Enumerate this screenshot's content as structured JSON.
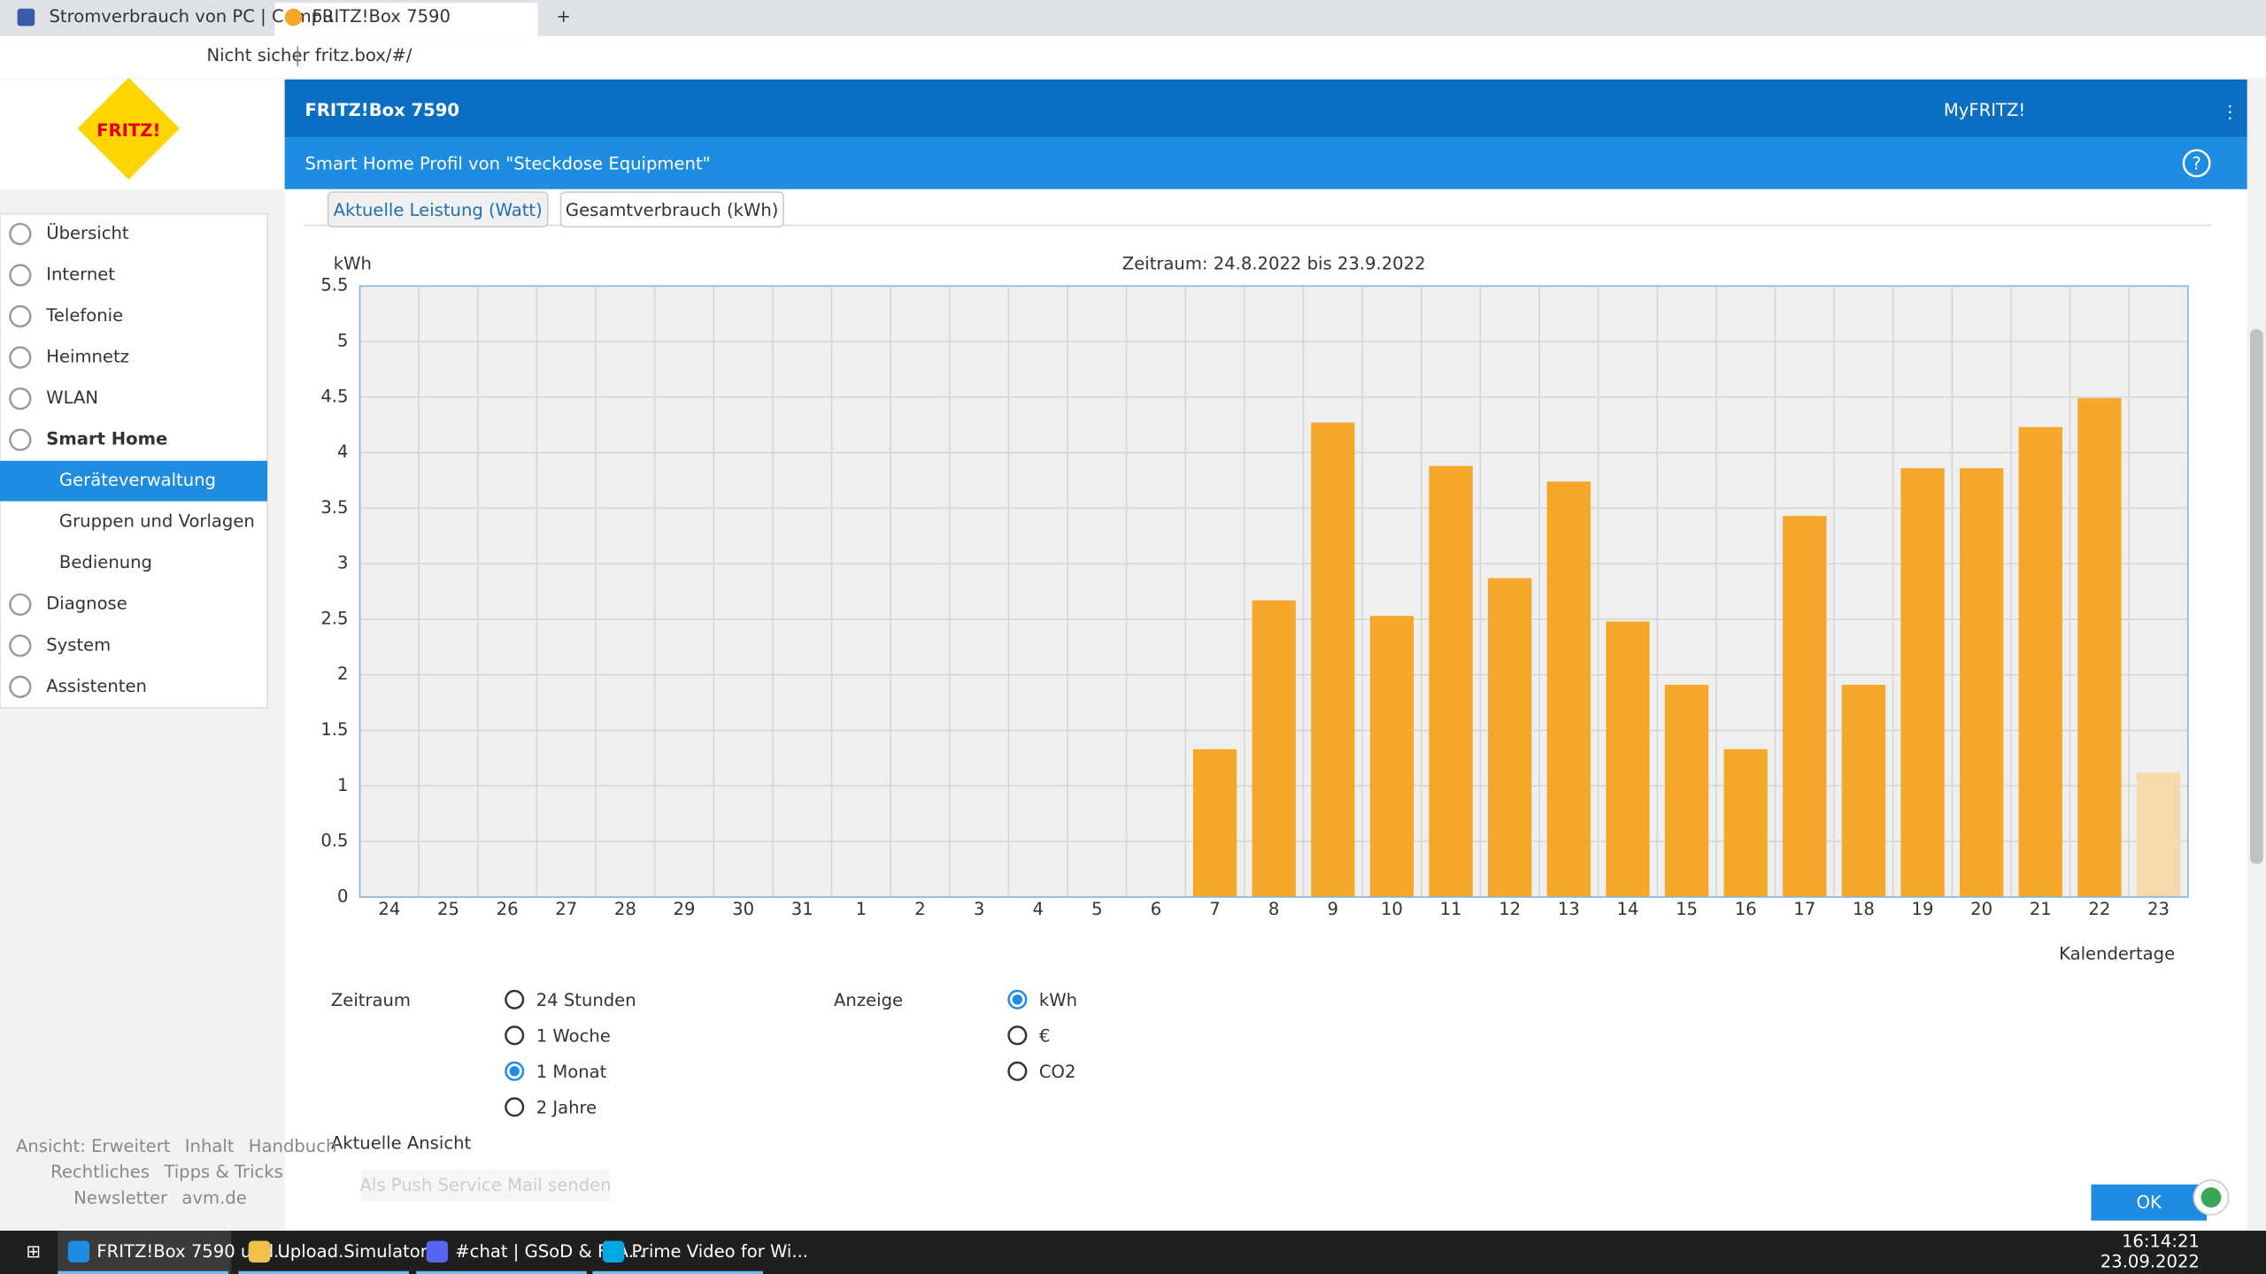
{
  "browser": {
    "tabs": [
      "Stromverbrauch von PC | Compu",
      "FRITZ!Box 7590"
    ],
    "security": "Nicht sicher",
    "url": "fritz.box/#/"
  },
  "header": {
    "logo": "FRITZ!",
    "title": "FRITZ!Box 7590",
    "myfritz": "MyFRITZ!",
    "subtitle": "Smart Home Profil von \"Steckdose Equipment\"",
    "help": "?"
  },
  "menu": [
    {
      "label": "Übersicht"
    },
    {
      "label": "Internet"
    },
    {
      "label": "Telefonie"
    },
    {
      "label": "Heimnetz"
    },
    {
      "label": "WLAN"
    },
    {
      "label": "Smart Home",
      "bold": true
    },
    {
      "label": "Geräteverwaltung",
      "sub": true,
      "active": true
    },
    {
      "label": "Gruppen und Vorlagen",
      "sub": true
    },
    {
      "label": "Bedienung",
      "sub": true
    },
    {
      "label": "Diagnose"
    },
    {
      "label": "System"
    },
    {
      "label": "Assistenten"
    }
  ],
  "footer_links": [
    [
      "Ansicht: Erweitert",
      "Inhalt",
      "Handbuch"
    ],
    [
      "Rechtliches",
      "Tipps & Tricks"
    ],
    [
      "Newsletter",
      "avm.de"
    ]
  ],
  "tabs": [
    {
      "label": "Aktuelle Leistung (Watt)"
    },
    {
      "label": "Gesamtverbrauch (kWh)",
      "active": true
    }
  ],
  "chart_data": {
    "type": "bar",
    "title": "Zeitraum: 24.8.2022 bis 23.9.2022",
    "y_label": "kWh",
    "x_label": "Kalendertage",
    "categories": [
      "24",
      "25",
      "26",
      "27",
      "28",
      "29",
      "30",
      "31",
      "1",
      "2",
      "3",
      "4",
      "5",
      "6",
      "7",
      "8",
      "9",
      "10",
      "11",
      "12",
      "13",
      "14",
      "15",
      "16",
      "17",
      "18",
      "19",
      "20",
      "21",
      "22",
      "23"
    ],
    "values": [
      0,
      0,
      0,
      0,
      0,
      0,
      0,
      0,
      0,
      0,
      0,
      0,
      0,
      0,
      1.33,
      2.67,
      4.27,
      2.53,
      3.88,
      2.87,
      3.74,
      2.48,
      1.91,
      1.33,
      3.43,
      1.91,
      3.86,
      3.86,
      4.23,
      4.49,
      1.12
    ],
    "colors": [
      "#f5a72a",
      "#f5a72a",
      "#f5a72a",
      "#f5a72a",
      "#f5a72a",
      "#f5a72a",
      "#f5a72a",
      "#f5a72a",
      "#f5a72a",
      "#f5a72a",
      "#f5a72a",
      "#f5a72a",
      "#f5a72a",
      "#f5a72a",
      "#f5a72a",
      "#f5a72a",
      "#f5a72a",
      "#f5a72a",
      "#f5a72a",
      "#f5a72a",
      "#f5a72a",
      "#f5a72a",
      "#f5a72a",
      "#f5a72a",
      "#f5a72a",
      "#f5a72a",
      "#f5a72a",
      "#f5a72a",
      "#f5a72a",
      "#f5a72a",
      "#f8d9ac"
    ],
    "ylim": [
      0,
      5.5
    ],
    "yticks": [
      0,
      0.5,
      1,
      1.5,
      2,
      2.5,
      3,
      3.5,
      4,
      4.5,
      5,
      5.5
    ],
    "grid": true
  },
  "options": [
    {
      "label": "Zeitraum",
      "choices": [
        {
          "label": "24 Stunden"
        },
        {
          "label": "1 Woche"
        },
        {
          "label": "1 Monat",
          "checked": true
        },
        {
          "label": "2 Jahre"
        }
      ]
    },
    {
      "label": "Anzeige",
      "choices": [
        {
          "label": "kWh",
          "checked": true
        },
        {
          "label": "€"
        },
        {
          "label": "CO2"
        }
      ]
    }
  ],
  "current_view": {
    "label": "Aktuelle Ansicht",
    "button": "Als Push Service Mail senden"
  },
  "ok": "OK",
  "taskbar": {
    "apps": [
      "FRITZ!Box 7590 und...",
      "Upload.Simulator",
      "#chat | GSoD & FYA...",
      "Prime Video for Wi..."
    ],
    "time": "16:14:21",
    "date": "23.09.2022"
  }
}
